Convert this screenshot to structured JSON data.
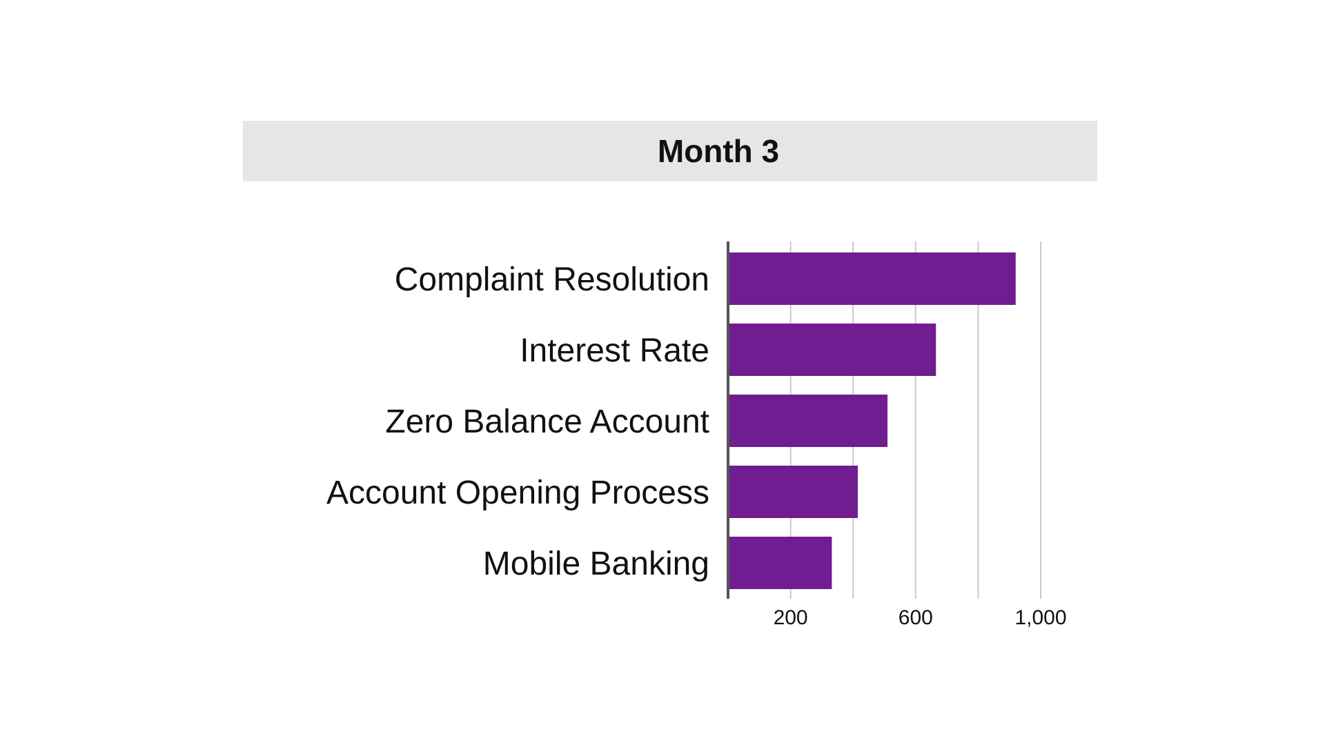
{
  "chart_data": {
    "type": "bar",
    "orientation": "horizontal",
    "title": "Month 3",
    "categories": [
      "Complaint Resolution",
      "Interest Rate",
      "Zero Balance Account",
      "Account Opening Process",
      "Mobile Banking"
    ],
    "values": [
      920,
      665,
      510,
      415,
      332
    ],
    "xlim": [
      0,
      1000
    ],
    "xticks": [
      200,
      600,
      1000
    ],
    "xtick_labels": [
      "200",
      "600",
      "1,000"
    ],
    "grid_values": [
      200,
      400,
      600,
      800,
      1000
    ],
    "grid": true,
    "legend": "none",
    "xlabel": "",
    "ylabel": "",
    "bar_color": "#6f1d91",
    "grid_color": "#c8c8c8",
    "axis_color": "#555555",
    "title_band_color": "#e6e6e6"
  }
}
